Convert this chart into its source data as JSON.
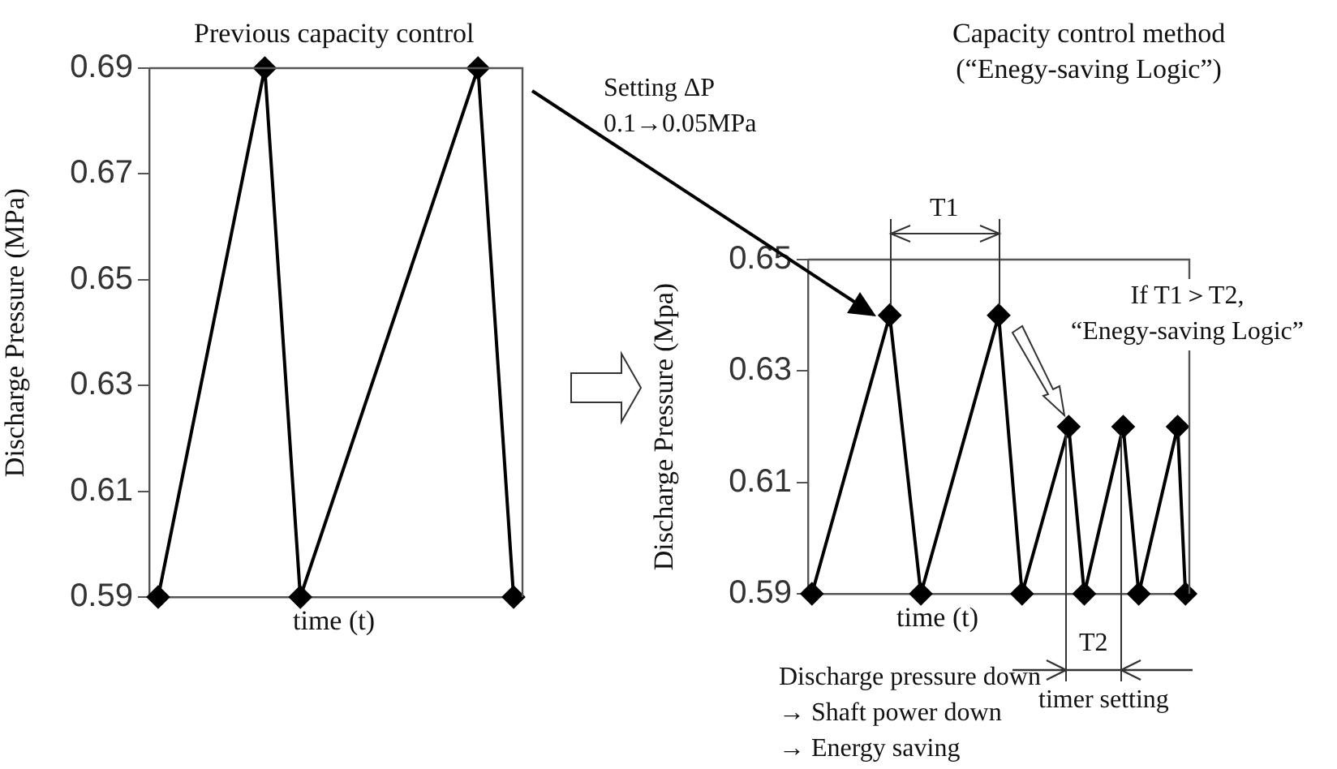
{
  "chart_data": [
    {
      "type": "line",
      "title": "Previous capacity control",
      "xlabel": "time (t)",
      "ylabel": "Discharge Pressure (MPa)",
      "categories": [
        null,
        null,
        null,
        null,
        null,
        null,
        null,
        null,
        null,
        null,
        null,
        null,
        null,
        null,
        null,
        null,
        null,
        null,
        null,
        null,
        null
      ],
      "values": [
        0.59,
        null,
        null,
        null,
        null,
        null,
        0.69,
        null,
        0.59,
        null,
        null,
        null,
        null,
        null,
        null,
        null,
        null,
        null,
        0.69,
        null,
        0.59
      ],
      "color": "#000000",
      "ylim": [
        0.59,
        0.69
      ],
      "yticks": [
        0.59,
        0.61,
        0.63,
        0.65,
        0.67,
        0.69
      ],
      "marker": "diamond",
      "grid": false,
      "legend": false,
      "annotations": [
        "Setting ΔP\n0.1→0.05MPa"
      ]
    },
    {
      "type": "line",
      "title": "Capacity control method\n(“Enegy-saving Logic”)",
      "xlabel": "time (t)",
      "ylabel": "Discharge Pressure (Mpa)",
      "categories": [
        null,
        null,
        null,
        null,
        null,
        null,
        null,
        null,
        null,
        null,
        null,
        null,
        null,
        null,
        null,
        null,
        null,
        null,
        null,
        null,
        null,
        null,
        null,
        null,
        null,
        null,
        null,
        null,
        null,
        null,
        null,
        null,
        null,
        null,
        null,
        null,
        null,
        null,
        null,
        null,
        null,
        null,
        null,
        null,
        null,
        null,
        null,
        null,
        null
      ],
      "values": [
        0.59,
        null,
        null,
        null,
        null,
        null,
        null,
        null,
        null,
        null,
        0.64,
        null,
        null,
        null,
        0.59,
        null,
        null,
        null,
        null,
        null,
        null,
        null,
        null,
        null,
        0.64,
        null,
        null,
        0.59,
        null,
        null,
        null,
        null,
        null,
        0.62,
        null,
        0.59,
        null,
        null,
        null,
        null,
        0.62,
        null,
        0.59,
        null,
        null,
        null,
        null,
        0.62,
        0.59
      ],
      "color": "#000000",
      "ylim": [
        0.59,
        0.65
      ],
      "yticks": [
        0.59,
        0.61,
        0.63,
        0.65
      ],
      "marker": "diamond",
      "grid": false,
      "legend": false,
      "annotations": [
        "T1",
        "If T1＞T2,\n“Enegy-saving Logic”",
        "T2",
        "timer setting",
        "Discharge pressure down\n→ Shaft power down\n→ Energy saving"
      ]
    }
  ]
}
